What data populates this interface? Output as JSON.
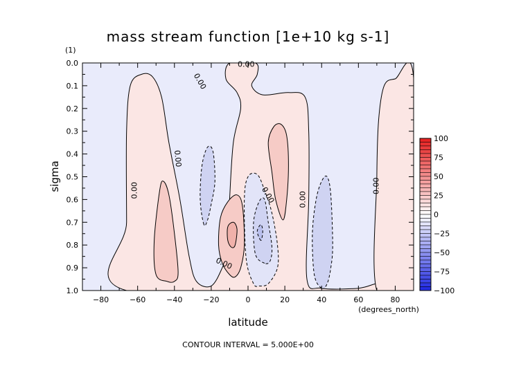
{
  "chart_data": {
    "type": "contour",
    "title": "mass stream function [1e+10 kg s-1]",
    "xlabel": "latitude",
    "xunits": "(degrees_north)",
    "ylabel": "sigma",
    "yunits": "(1)",
    "xlim": [
      -90,
      90
    ],
    "ylim": [
      1.0,
      0.0
    ],
    "y_inverted": true,
    "xticks": [
      -80,
      -60,
      -40,
      -20,
      0,
      20,
      40,
      60,
      80
    ],
    "xtick_labels": [
      "−80",
      "−60",
      "−40",
      "−20",
      "0",
      "20",
      "40",
      "60",
      "80"
    ],
    "yticks": [
      0.0,
      0.1,
      0.2,
      0.3,
      0.4,
      0.5,
      0.6,
      0.7,
      0.8,
      0.9,
      1.0
    ],
    "ytick_labels": [
      "0.0",
      "0.1",
      "0.2",
      "0.3",
      "0.4",
      "0.5",
      "0.6",
      "0.7",
      "0.8",
      "0.9",
      "1.0"
    ],
    "contour_interval": 5,
    "footer": "CONTOUR INTERVAL = 5.000E+00",
    "colorbar": {
      "ticks": [
        100,
        75,
        50,
        25,
        0,
        -25,
        -50,
        -75,
        -100
      ],
      "tick_labels": [
        "100",
        "75",
        "50",
        "25",
        "0",
        "−25",
        "−50",
        "−75",
        "−100"
      ]
    },
    "contour_labels": [
      {
        "text": "0.00",
        "x": -1,
        "y": 0.005,
        "angle": 0
      },
      {
        "text": "0.00",
        "x": -26,
        "y": 0.08,
        "angle": 60
      },
      {
        "text": "0.00",
        "x": -38,
        "y": 0.42,
        "angle": 85
      },
      {
        "text": "0.00",
        "x": -62,
        "y": 0.56,
        "angle": -90
      },
      {
        "text": "0.00",
        "x": 11,
        "y": 0.58,
        "angle": 60
      },
      {
        "text": "0.00",
        "x": 29.5,
        "y": 0.6,
        "angle": -90
      },
      {
        "text": "0.00",
        "x": 69.5,
        "y": 0.54,
        "angle": -90
      },
      {
        "text": "0.00",
        "x": -13,
        "y": 0.88,
        "angle": 25
      }
    ],
    "regions": [
      {
        "sign": "positive",
        "fill": "#fbe6e4",
        "stroke": "solid",
        "level": 0,
        "points": [
          [
            -66,
            1.0
          ],
          [
            -66,
            0.7
          ],
          [
            -66,
            0.3
          ],
          [
            -64,
            0.1
          ],
          [
            -58,
            0.05
          ],
          [
            -52,
            0.06
          ],
          [
            -47,
            0.15
          ],
          [
            -43,
            0.35
          ],
          [
            -37,
            0.6
          ],
          [
            -32,
            0.85
          ],
          [
            -28,
            0.96
          ],
          [
            -20,
            0.98
          ],
          [
            -14,
            0.9
          ],
          [
            -11,
            0.82
          ],
          [
            -10,
            0.6
          ],
          [
            -8,
            0.35
          ],
          [
            -4,
            0.2
          ],
          [
            -6,
            0.13
          ],
          [
            -12,
            0.07
          ],
          [
            -10,
            0.0
          ],
          [
            4,
            0.0
          ],
          [
            5,
            0.05
          ],
          [
            2,
            0.1
          ],
          [
            8,
            0.14
          ],
          [
            22,
            0.13
          ],
          [
            31,
            0.15
          ],
          [
            33,
            0.3
          ],
          [
            33,
            0.6
          ],
          [
            32,
            0.95
          ],
          [
            40,
            0.99
          ],
          [
            60,
            0.99
          ],
          [
            70,
            0.97
          ],
          [
            70,
            1.0
          ]
        ]
      },
      {
        "sign": "positive",
        "fill": "#fbe6e4",
        "stroke": "solid",
        "level": 0,
        "points": [
          [
            70,
            1.0
          ],
          [
            70,
            0.5
          ],
          [
            71,
            0.25
          ],
          [
            74,
            0.1
          ],
          [
            80,
            0.07
          ],
          [
            90,
            0.065
          ],
          [
            90,
            1.0
          ]
        ]
      },
      {
        "sign": "positive",
        "fill": "#f6cbc6",
        "stroke": "solid",
        "level": 5,
        "points": [
          [
            -44,
            0.96
          ],
          [
            -50,
            0.93
          ],
          [
            -51,
            0.78
          ],
          [
            -48,
            0.56
          ],
          [
            -46,
            0.52
          ],
          [
            -43,
            0.58
          ],
          [
            -40,
            0.75
          ],
          [
            -38,
            0.92
          ],
          [
            -40,
            0.96
          ]
        ]
      },
      {
        "sign": "positive",
        "fill": "#f6cbc6",
        "stroke": "solid",
        "level": 5,
        "points": [
          [
            -10,
            0.93
          ],
          [
            -14,
            0.88
          ],
          [
            -16,
            0.8
          ],
          [
            -15,
            0.68
          ],
          [
            -11,
            0.61
          ],
          [
            -6,
            0.58
          ],
          [
            -3,
            0.63
          ],
          [
            -2,
            0.8
          ],
          [
            -4,
            0.9
          ],
          [
            -7,
            0.94
          ]
        ]
      },
      {
        "sign": "positive",
        "fill": "#f6cbc6",
        "stroke": "solid",
        "level": 5,
        "points": [
          [
            19,
            0.69
          ],
          [
            15,
            0.6
          ],
          [
            13,
            0.48
          ],
          [
            11,
            0.35
          ],
          [
            14,
            0.28
          ],
          [
            18,
            0.27
          ],
          [
            21,
            0.32
          ],
          [
            22,
            0.45
          ],
          [
            21,
            0.6
          ]
        ]
      },
      {
        "sign": "positive",
        "fill": "#f0b1aa",
        "stroke": "solid",
        "level": 10,
        "points": [
          [
            -9,
            0.81
          ],
          [
            -11,
            0.78
          ],
          [
            -11,
            0.72
          ],
          [
            -8,
            0.7
          ],
          [
            -6,
            0.73
          ],
          [
            -7,
            0.8
          ]
        ]
      },
      {
        "sign": "negative",
        "fill": "#e2e4f8",
        "stroke": "dashed",
        "level": 0,
        "points": [
          [
            3,
            0.97
          ],
          [
            -1,
            0.86
          ],
          [
            -2,
            0.6
          ],
          [
            0,
            0.5
          ],
          [
            5,
            0.49
          ],
          [
            9,
            0.56
          ],
          [
            13,
            0.66
          ],
          [
            16,
            0.8
          ],
          [
            16,
            0.9
          ],
          [
            11,
            0.97
          ],
          [
            6,
            0.98
          ]
        ]
      },
      {
        "sign": "negative",
        "fill": "#cfd3f2",
        "stroke": "dashed",
        "level": -5,
        "points": [
          [
            -24,
            0.71
          ],
          [
            -26,
            0.6
          ],
          [
            -25,
            0.45
          ],
          [
            -22,
            0.37
          ],
          [
            -19,
            0.39
          ],
          [
            -18,
            0.52
          ],
          [
            -20,
            0.62
          ],
          [
            -22,
            0.69
          ]
        ]
      },
      {
        "sign": "negative",
        "fill": "#cfd3f2",
        "stroke": "dashed",
        "level": -5,
        "points": [
          [
            9,
            0.88
          ],
          [
            4,
            0.84
          ],
          [
            3,
            0.7
          ],
          [
            6,
            0.61
          ],
          [
            9,
            0.6
          ],
          [
            11,
            0.7
          ],
          [
            13,
            0.81
          ],
          [
            12,
            0.87
          ]
        ]
      },
      {
        "sign": "negative",
        "fill": "#cfd3f2",
        "stroke": "dashed",
        "level": -5,
        "points": [
          [
            40,
            0.99
          ],
          [
            36,
            0.93
          ],
          [
            35,
            0.75
          ],
          [
            37,
            0.6
          ],
          [
            40,
            0.52
          ],
          [
            43,
            0.5
          ],
          [
            45,
            0.58
          ],
          [
            46,
            0.8
          ],
          [
            45,
            0.9
          ],
          [
            43,
            0.97
          ]
        ]
      },
      {
        "sign": "negative",
        "fill": "#b9bfec",
        "stroke": "dashed",
        "level": -10,
        "points": [
          [
            7,
            0.78
          ],
          [
            5,
            0.74
          ],
          [
            7,
            0.71
          ],
          [
            8,
            0.74
          ]
        ]
      }
    ],
    "background_fill": "#e9ebfb"
  },
  "colors": {
    "frame": "#000000",
    "pos_max": "#e02020",
    "neg_max": "#2030e0"
  }
}
